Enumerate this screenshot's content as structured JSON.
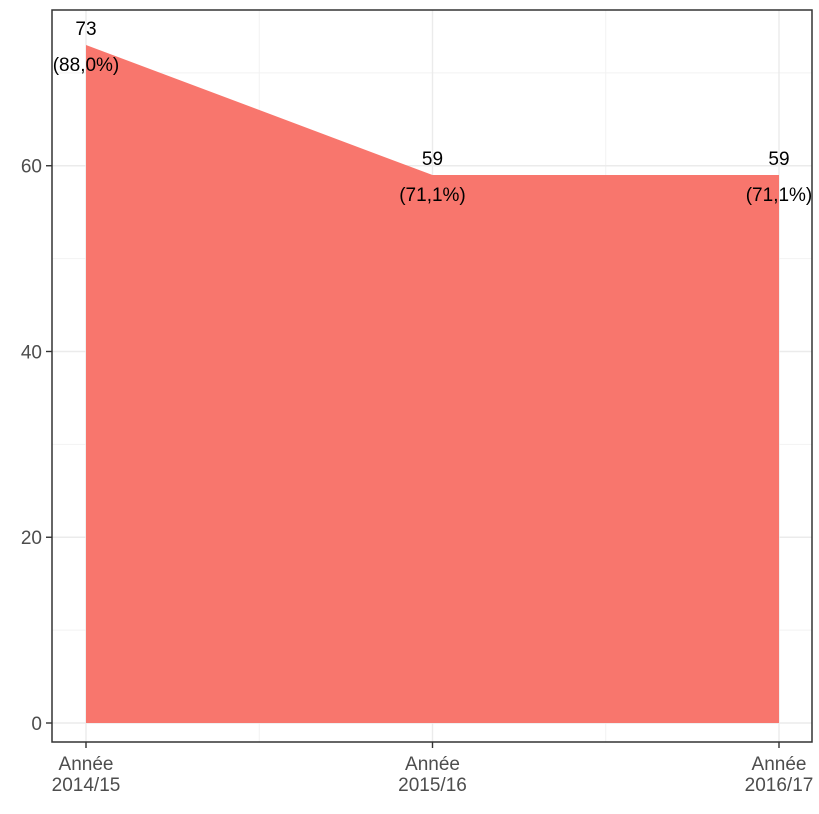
{
  "chart_data": {
    "type": "area",
    "title": "",
    "xlabel": "",
    "ylabel": "",
    "categories": [
      [
        "Année",
        "2014/15"
      ],
      [
        "Année",
        "2015/16"
      ],
      [
        "Année",
        "2016/17"
      ]
    ],
    "values": [
      73,
      59,
      59
    ],
    "data_labels": [
      {
        "count": "73",
        "percent": "(88,0%)"
      },
      {
        "count": "59",
        "percent": "(71,1%)"
      },
      {
        "count": "59",
        "percent": "(71,1%)"
      }
    ],
    "ylim": [
      0,
      77
    ],
    "yticks": [
      0,
      20,
      40,
      60
    ],
    "y_minor_ticks": [
      10,
      30,
      50,
      70
    ],
    "grid": true,
    "fill_color": "#F8766D",
    "theme": "bw"
  }
}
